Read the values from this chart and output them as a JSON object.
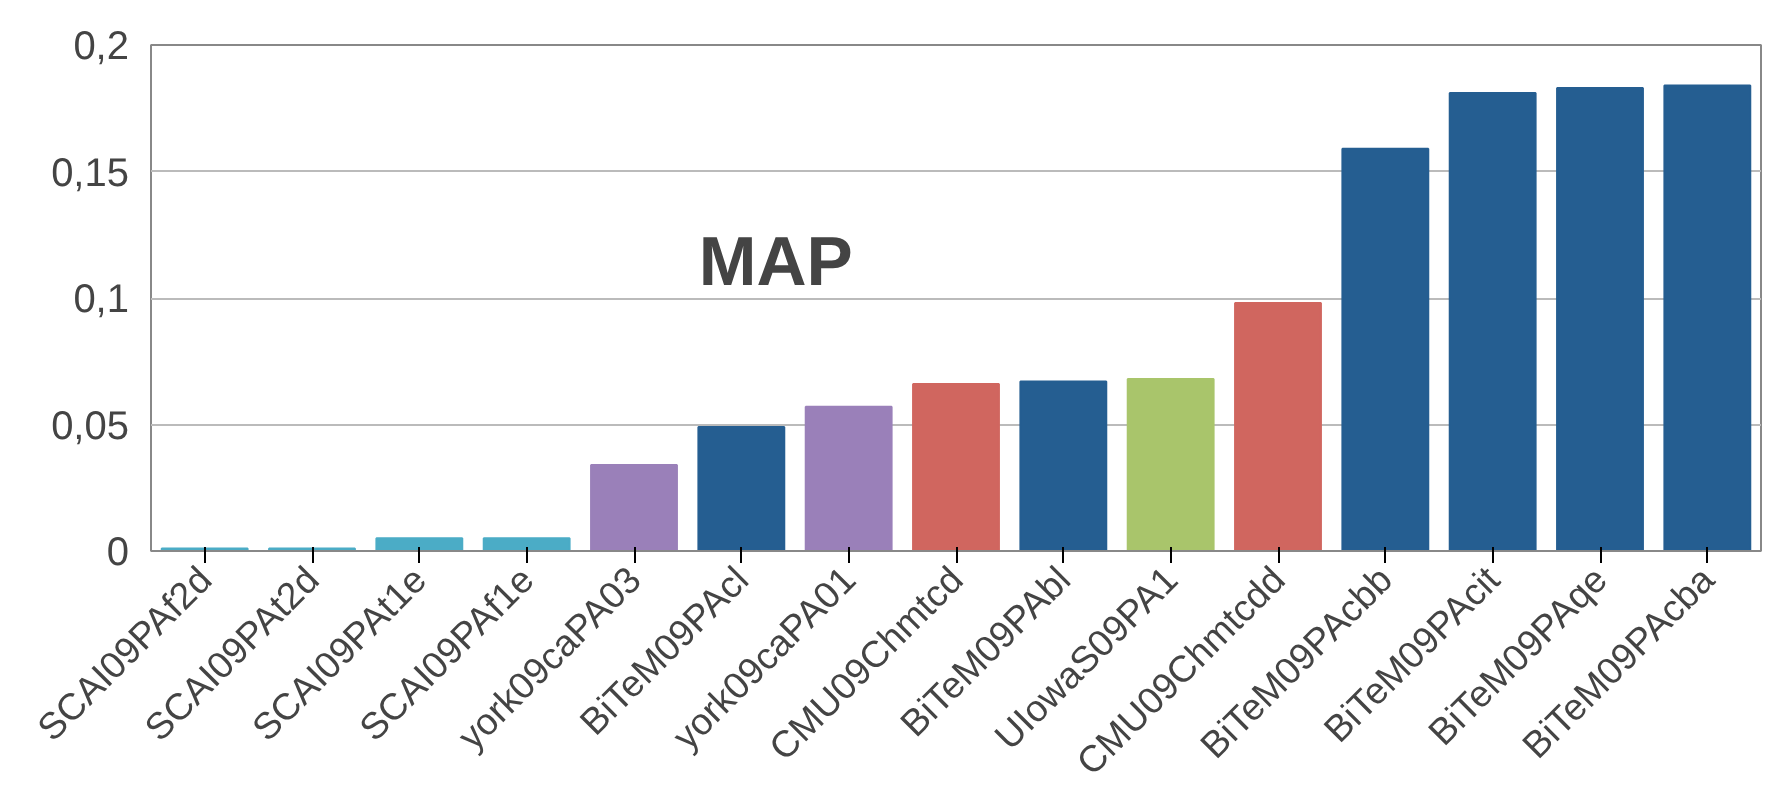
{
  "chart_data": {
    "type": "bar",
    "title": "MAP",
    "categories": [
      "SCAI09PAf2d",
      "SCAI09PAt2d",
      "SCAI09PAt1e",
      "SCAI09PAf1e",
      "york09caPA03",
      "BiTeM09PAcl",
      "york09caPA01",
      "CMU09Chmtcd",
      "BiTeM09PAbl",
      "UIowaS09PA1",
      "CMU09Chmtcdd",
      "BiTeM09PAcbb",
      "BiTeM09PAcit",
      "BiTeM09PAqe",
      "BiTeM09PAcba"
    ],
    "values": [
      0.001,
      0.001,
      0.005,
      0.005,
      0.034,
      0.049,
      0.057,
      0.066,
      0.067,
      0.068,
      0.098,
      0.159,
      0.181,
      0.183,
      0.184
    ],
    "colors": [
      "#4bacc6",
      "#4bacc6",
      "#4bacc6",
      "#4bacc6",
      "#9a80b9",
      "#255e91",
      "#9a80b9",
      "#d0665f",
      "#255e91",
      "#a9c56b",
      "#d0665f",
      "#255e91",
      "#255e91",
      "#255e91",
      "#255e91"
    ],
    "ylim": [
      0,
      0.2
    ],
    "yticks": [
      0,
      {
        "value": 0.05,
        "label": "0,05"
      },
      {
        "value": 0.1,
        "label": "0,1"
      },
      {
        "value": 0.15,
        "label": "0,15"
      },
      {
        "value": 0.2,
        "label": "0,2"
      }
    ],
    "grid": "y"
  }
}
